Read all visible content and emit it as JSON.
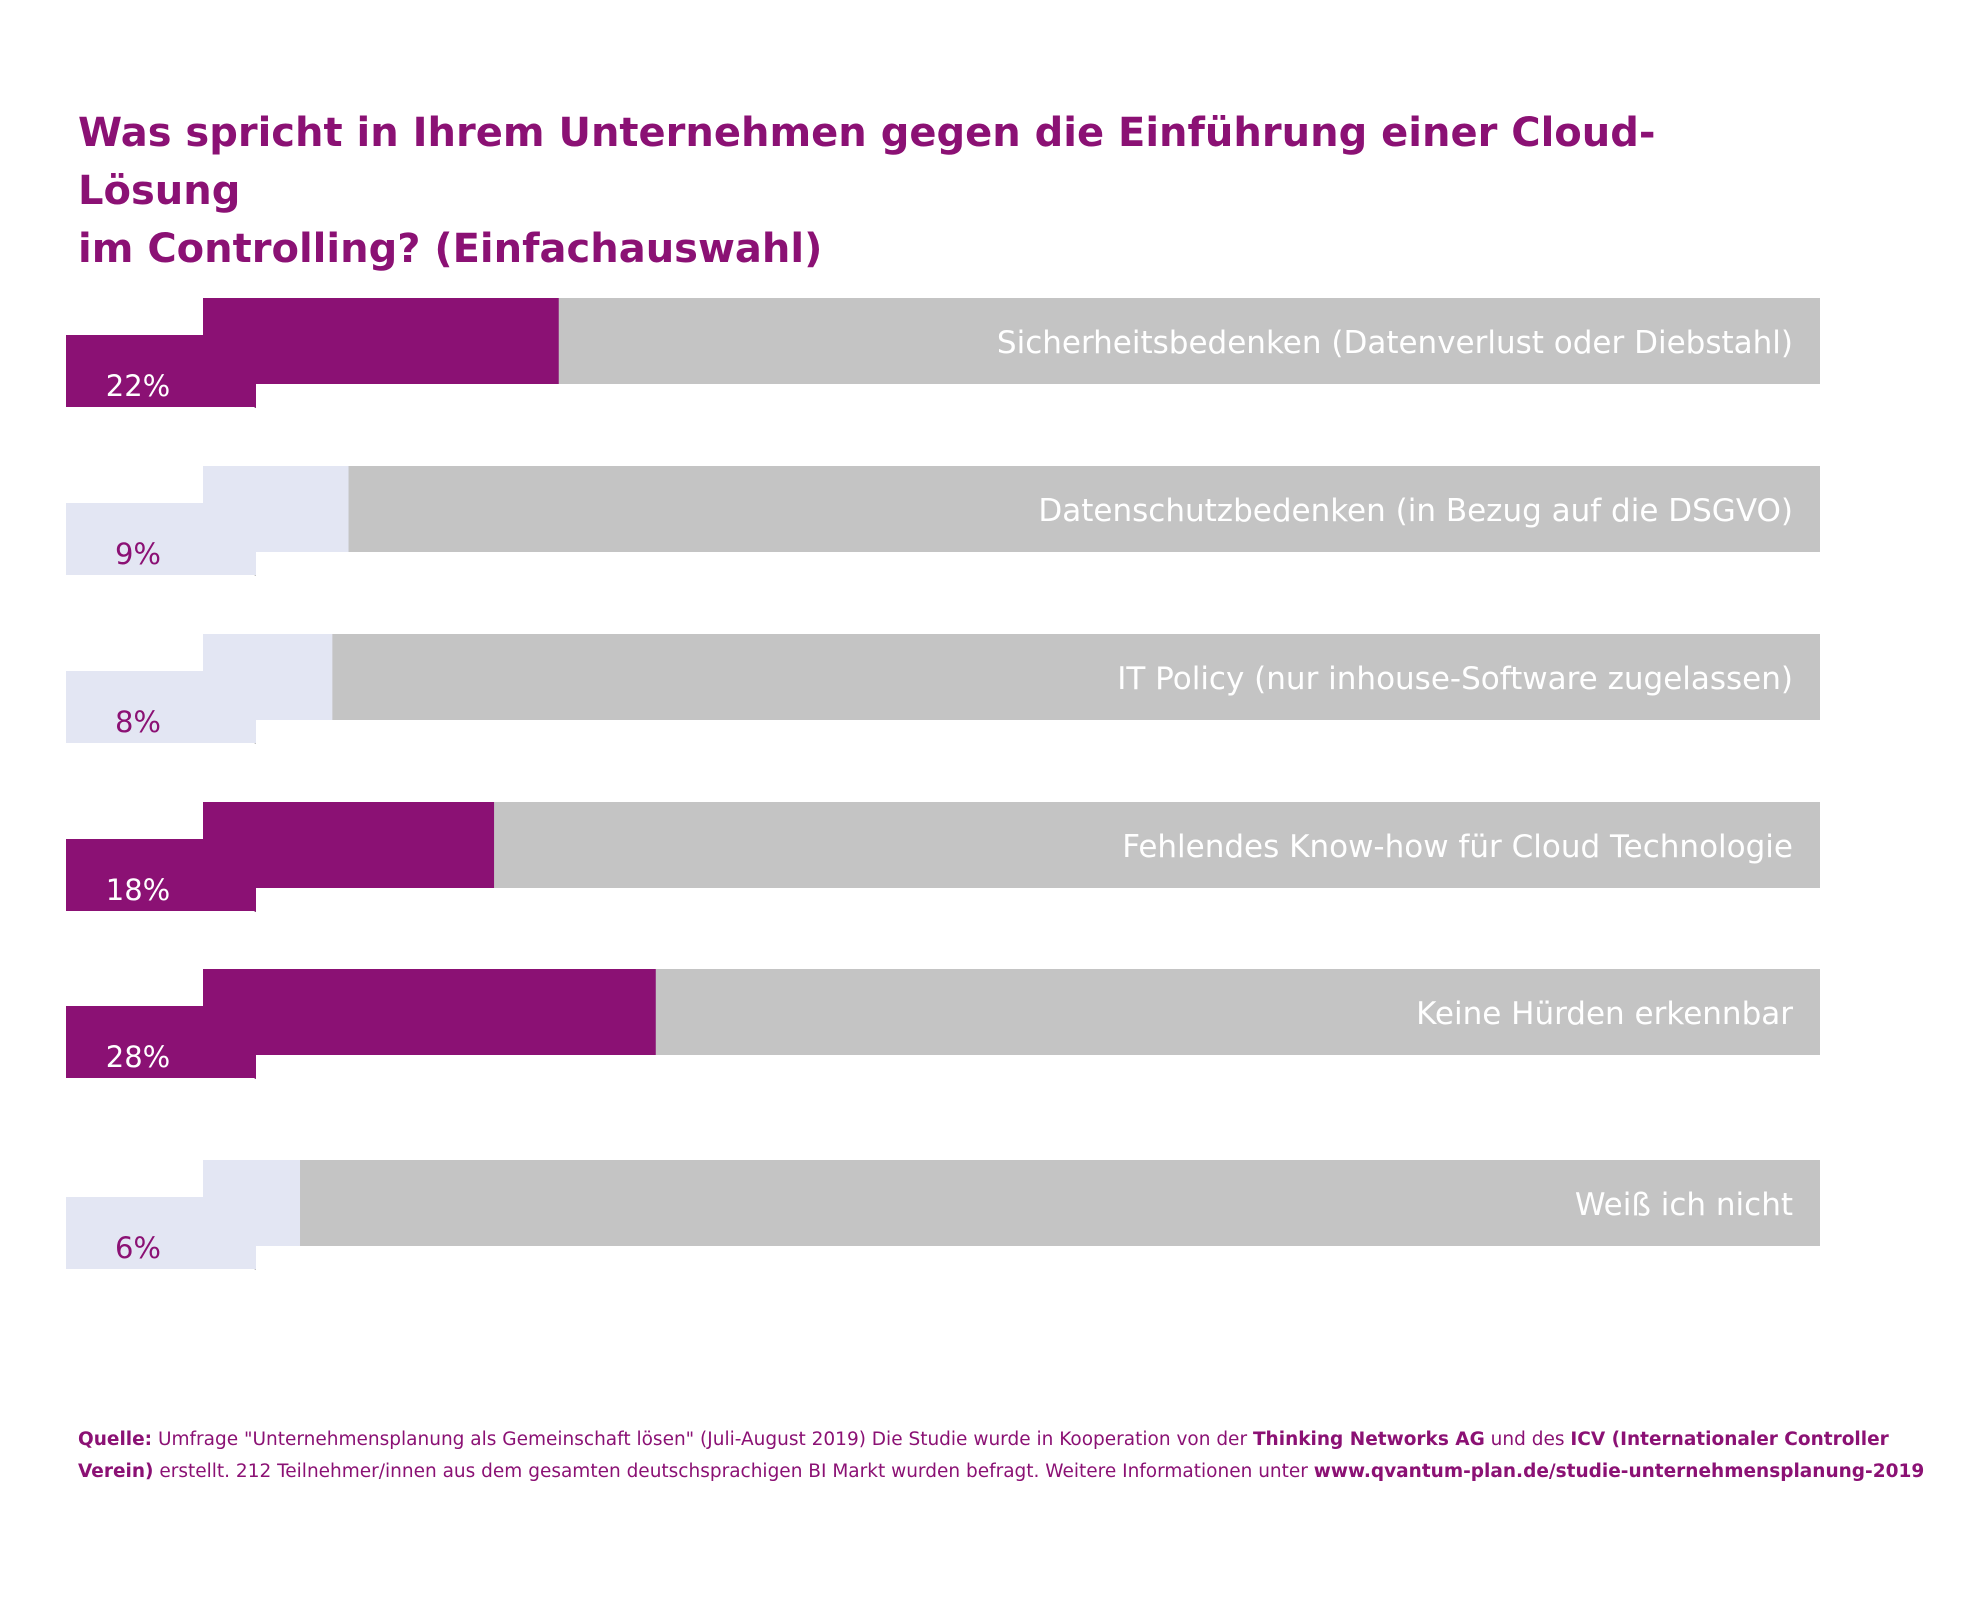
{
  "title_line1": "Was spricht in Ihrem Unternehmen gegen die Einführung einer Cloud-Lösung",
  "title_line2": "im Controlling? (Einfachauswahl)",
  "chart_data": {
    "type": "bar",
    "orientation": "horizontal",
    "title": "Was spricht in Ihrem Unternehmen gegen die Einführung einer Cloud-Lösung im Controlling? (Einfachauswahl)",
    "unit": "%",
    "xlim": [
      0,
      100
    ],
    "categories": [
      "Sicherheitsbedenken (Datenverlust oder Diebstahl)",
      "Datenschutzbedenken (in Bezug auf die DSGVO)",
      "IT Policy (nur inhouse-Software zugelassen)",
      "Fehlendes Know-how für Cloud Technologie",
      "Keine Hürden erkennbar",
      "Weiß ich nicht"
    ],
    "values": [
      22,
      9,
      8,
      18,
      28,
      6
    ],
    "value_labels": [
      "22%",
      "9%",
      "8%",
      "18%",
      "28%",
      "6%"
    ],
    "highlighted": [
      true,
      false,
      false,
      true,
      true,
      false
    ],
    "grid": false,
    "legend": "none"
  },
  "colors": {
    "highlight": "#8b1174",
    "highlight_fold": "#5e0b4f",
    "light": "#e3e6f3",
    "light_fold": "#b3b3b3",
    "track": "#c4c4c4",
    "label_text_on_track": "#ffffff",
    "pct_on_dark": "#ffffff",
    "pct_on_light": "#8b1174",
    "text": "#8b1174"
  },
  "source": {
    "label": "Quelle:",
    "text1": " Umfrage \"Unternehmensplanung als Gemeinschaft lösen\" (Juli-August 2019) Die Studie wurde in Kooperation von der ",
    "org1": "Thinking Networks AG",
    "text2": " und des ",
    "org2": "ICV (Internationaler Controller Verein)",
    "text3": " erstellt. 212 Teilnehmer/innen aus dem gesamten deutschsprachigen BI Markt wurden befragt. Weitere Informationen unter ",
    "url": "www.qvantum-plan.de/studie-unternehmensplanung-2019"
  }
}
